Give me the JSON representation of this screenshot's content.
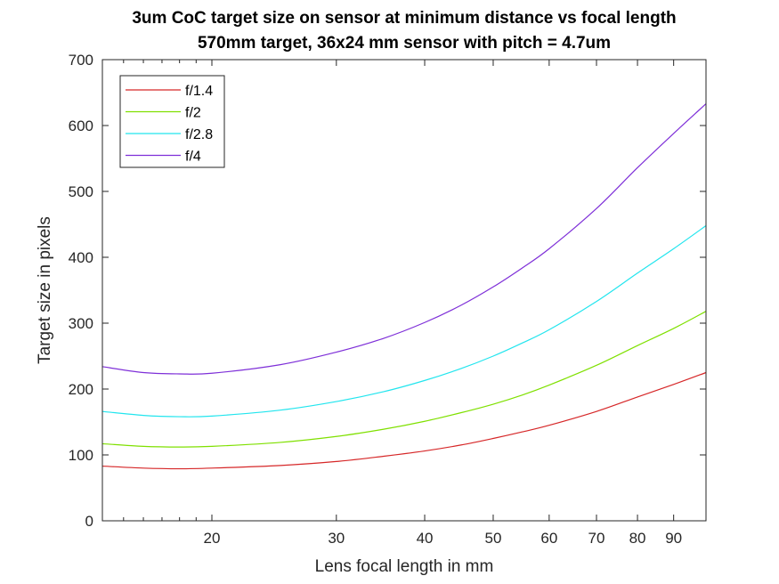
{
  "chart_data": {
    "type": "line",
    "title": "3um CoC target size on sensor at minimum distance vs focal length",
    "subtitle": "570mm target, 36x24 mm sensor with pitch = 4.7um",
    "xlabel": "Lens focal length in mm",
    "ylabel": "Target size in pixels",
    "xscale": "log",
    "xlim": [
      14,
      100
    ],
    "ylim": [
      0,
      700
    ],
    "xticks": [
      20,
      30,
      40,
      50,
      60,
      70,
      80,
      90
    ],
    "xtick_labels": [
      "20",
      "30",
      "40",
      "50",
      "60",
      "70",
      "80",
      "90"
    ],
    "yticks": [
      0,
      100,
      200,
      300,
      400,
      500,
      600,
      700
    ],
    "ytick_labels": [
      "0",
      "100",
      "200",
      "300",
      "400",
      "500",
      "600",
      "700"
    ],
    "grid": false,
    "legend_position": "top-left",
    "x": [
      14,
      16,
      18,
      20,
      25,
      30,
      35,
      40,
      45,
      50,
      55,
      60,
      70,
      80,
      90,
      100
    ],
    "series": [
      {
        "name": "f/1.4",
        "color": "#d62728",
        "values": [
          83,
          80,
          79,
          80,
          84,
          90,
          98,
          106,
          115,
          125,
          135,
          145,
          166,
          188,
          207,
          225
        ]
      },
      {
        "name": "f/2",
        "color": "#7fe000",
        "values": [
          117,
          113,
          112,
          113,
          119,
          128,
          139,
          151,
          164,
          177,
          191,
          206,
          236,
          266,
          292,
          318
        ]
      },
      {
        "name": "f/2.8",
        "color": "#22e5ee",
        "values": [
          166,
          160,
          158,
          159,
          168,
          181,
          196,
          213,
          231,
          250,
          270,
          290,
          333,
          376,
          413,
          448
        ]
      },
      {
        "name": "f/4",
        "color": "#7e2fd8",
        "values": [
          234,
          225,
          223,
          224,
          237,
          256,
          277,
          301,
          327,
          355,
          384,
          413,
          474,
          536,
          588,
          633
        ]
      }
    ]
  }
}
